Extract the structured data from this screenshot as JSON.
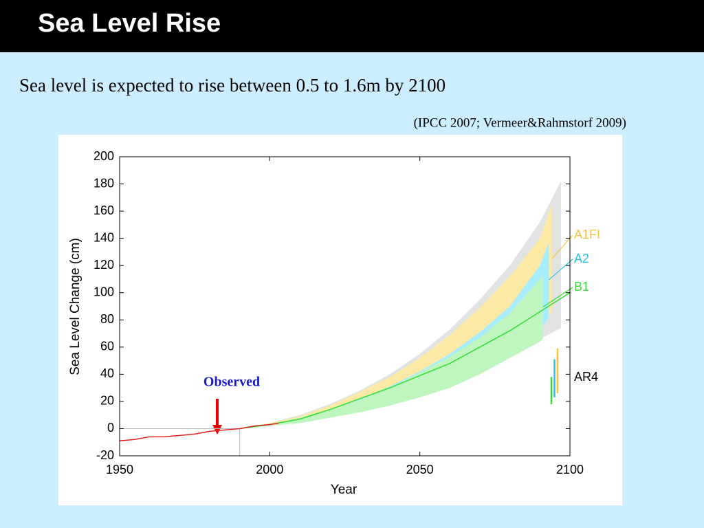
{
  "slide_title": "Sea Level Rise",
  "statement": "Sea level is expected to rise between 0.5 to 1.6m by 2100",
  "citation": "(IPCC 2007; Vermeer&Rahmstorf 2009)",
  "chart_data": {
    "type": "line",
    "xlabel": "Year",
    "ylabel": "Sea Level Change (cm)",
    "xlim": [
      1950,
      2100
    ],
    "ylim": [
      -20,
      200
    ],
    "xticks": [
      1950,
      2000,
      2050,
      2100
    ],
    "yticks": [
      -20,
      0,
      20,
      40,
      60,
      80,
      100,
      120,
      140,
      160,
      180,
      200
    ],
    "grid": false,
    "annotation": "Observed",
    "envelope": {
      "color": "#e2e2e2",
      "x": [
        1990,
        2000,
        2010,
        2020,
        2030,
        2040,
        2050,
        2060,
        2070,
        2080,
        2090,
        2097
      ],
      "upper": [
        0,
        4,
        10,
        18,
        28,
        40,
        55,
        73,
        95,
        120,
        152,
        182
      ],
      "lower": [
        0,
        2,
        5,
        9,
        14,
        20,
        27,
        35,
        44,
        54,
        66,
        74
      ]
    },
    "series": [
      {
        "name": "A1FI",
        "color": "#f5c542",
        "band_color": "#fde9a6",
        "x": [
          1990,
          2000,
          2010,
          2020,
          2030,
          2040,
          2050,
          2060,
          2070,
          2080,
          2090,
          2094
        ],
        "upper": [
          0,
          4,
          9,
          17,
          27,
          38,
          52,
          69,
          89,
          112,
          140,
          165
        ],
        "lower": [
          0,
          3,
          7,
          12,
          19,
          26,
          34,
          43,
          54,
          66,
          80,
          85
        ],
        "ar4": [
          26,
          59
        ]
      },
      {
        "name": "A2",
        "color": "#29c5e6",
        "band_color": "#a8ecff",
        "x": [
          1990,
          2000,
          2010,
          2020,
          2030,
          2040,
          2050,
          2060,
          2070,
          2080,
          2090,
          2093
        ],
        "upper": [
          0,
          3,
          8,
          14,
          22,
          31,
          42,
          55,
          71,
          90,
          120,
          137
        ],
        "lower": [
          0,
          2,
          5,
          9,
          14,
          20,
          27,
          35,
          45,
          57,
          72,
          82
        ],
        "ar4": [
          23,
          51
        ]
      },
      {
        "name": "B1",
        "color": "#33dd33",
        "band_color": "#bff5bf",
        "x": [
          1990,
          2000,
          2010,
          2020,
          2030,
          2040,
          2050,
          2060,
          2070,
          2080,
          2090,
          2091
        ],
        "upper": [
          0,
          3,
          8,
          14,
          21,
          30,
          41,
          53,
          67,
          85,
          110,
          113
        ],
        "lower": [
          0,
          2,
          4,
          8,
          12,
          17,
          23,
          30,
          40,
          52,
          64,
          66
        ],
        "ar4": [
          18,
          38
        ],
        "line_x": [
          1990,
          2000,
          2010,
          2020,
          2030,
          2040,
          2050,
          2060,
          2070,
          2080,
          2090,
          2100
        ],
        "line_values": [
          0,
          3,
          7,
          14,
          22,
          30,
          39,
          48,
          60,
          72,
          86,
          100
        ]
      }
    ],
    "ar4_label": "AR4",
    "observed": {
      "color": "#e02020",
      "x": [
        1950,
        1955,
        1960,
        1965,
        1970,
        1975,
        1980,
        1985,
        1990,
        1995,
        2000,
        2003
      ],
      "values": [
        -9,
        -8,
        -6,
        -6,
        -5,
        -4,
        -2,
        -1,
        0,
        2,
        3,
        4
      ]
    }
  }
}
